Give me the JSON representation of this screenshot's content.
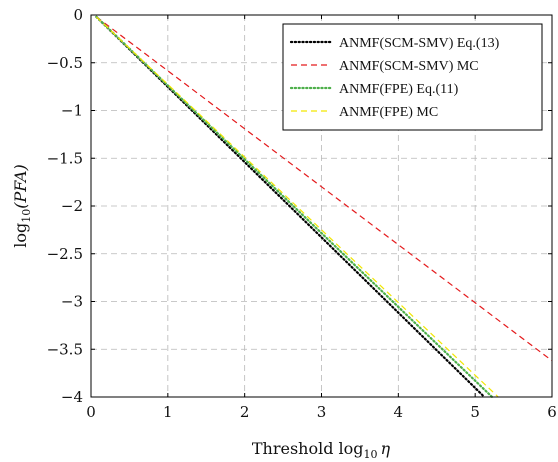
{
  "chart_data": {
    "type": "line",
    "title": "",
    "xlabel": "Threshold log",
    "xlabel_sub": "10",
    "xlabel_var": "η",
    "ylabel": "log",
    "ylabel_sub": "10",
    "ylabel_var": "(PFA)",
    "xlim": [
      0,
      6
    ],
    "ylim": [
      -4,
      0
    ],
    "xticks": [
      0,
      1,
      2,
      3,
      4,
      5,
      6
    ],
    "xtick_labels": [
      "0",
      "1",
      "2",
      "3",
      "4",
      "5",
      "6"
    ],
    "yticks": [
      0,
      -0.5,
      -1,
      -1.5,
      -2,
      -2.5,
      -3,
      -3.5,
      -4
    ],
    "ytick_labels": [
      "0",
      "−0.5",
      "−1",
      "−1.5",
      "−2",
      "−2.5",
      "−3",
      "−3.5",
      "−4"
    ],
    "grid": true,
    "legend_position": "top-right",
    "series": [
      {
        "name": "ANMF(SCM-SMV) Eq.(13)",
        "color": "#000000",
        "style": "dotted",
        "x": [
          0.07,
          5.12
        ],
        "y": [
          -0.02,
          -4.0
        ]
      },
      {
        "name": "ANMF(SCM-SMV) MC",
        "color": "#e41a1c",
        "style": "dashed",
        "x": [
          0.07,
          6.0
        ],
        "y": [
          -0.02,
          -3.62
        ]
      },
      {
        "name": "ANMF(FPE) Eq.(11)",
        "color": "#4daf4a",
        "style": "dotted",
        "x": [
          0.07,
          5.22
        ],
        "y": [
          -0.02,
          -4.0
        ]
      },
      {
        "name": "ANMF(FPE) MC",
        "color": "#f2e600",
        "style": "dashed",
        "x": [
          0.07,
          5.3
        ],
        "y": [
          -0.02,
          -4.0
        ]
      }
    ]
  }
}
